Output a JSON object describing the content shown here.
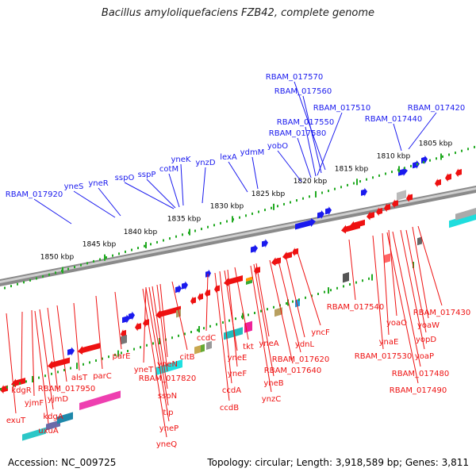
{
  "title": "Bacillus amyloliquefaciens FZB42, complete genome",
  "accession": "Accession: NC_009725",
  "topology": "Topology: circular; Length: 3,918,589 bp; Genes: 3,811",
  "colors": {
    "forward": "#1a1aee",
    "reverse": "#ee1111",
    "backbone": "#8a8a8a",
    "ticks": "#22aa22"
  },
  "scale_labels": [
    "1805 kbp",
    "1810 kbp",
    "1815 kbp",
    "1820 kbp",
    "1825 kbp",
    "1830 kbp",
    "1835 kbp",
    "1840 kbp",
    "1845 kbp",
    "1850 kbp"
  ],
  "forward_genes": [
    "RBAM_017570",
    "RBAM_017560",
    "RBAM_017510",
    "RBAM_017420",
    "RBAM_017550",
    "RBAM_017440",
    "RBAM_017580",
    "yobO",
    "ydmM",
    "lexA",
    "ynzD",
    "yneK",
    "cotM",
    "sspP",
    "sspO",
    "yneR",
    "yneS",
    "RBAM_017920"
  ],
  "reverse_genes": [
    "RBAM_017540",
    "RBAM_017430",
    "yoaO",
    "yoaW",
    "yopD",
    "ynaE",
    "RBAM_017530",
    "yoaP",
    "RBAM_017480",
    "RBAM_017490",
    "yncF",
    "ydnL",
    "RBAM_017620",
    "RBAM_017640",
    "yneA",
    "yneB",
    "ynzC",
    "tkt",
    "yneF",
    "yneE",
    "ccdA",
    "ccdB",
    "ccdC",
    "citB",
    "yneN",
    "RBAM_017820",
    "sspN",
    "yneT",
    "tlp",
    "yneP",
    "yneQ",
    "parE",
    "parC",
    "alsT",
    "RBAM_017950",
    "kdgR",
    "yjmF",
    "yjmD",
    "kdgA",
    "exuT",
    "uxuA"
  ]
}
